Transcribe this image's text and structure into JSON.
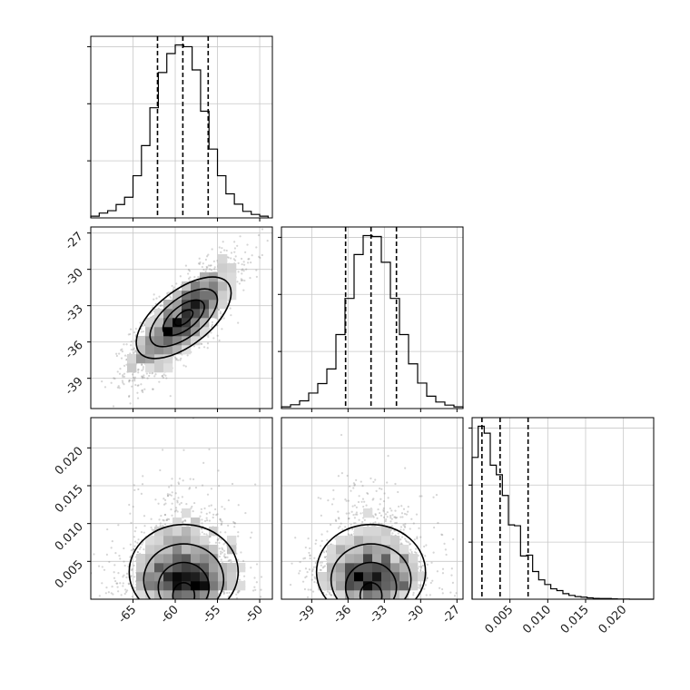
{
  "chart_data": [
    {
      "type": "histogram",
      "panel": "hist-param1",
      "x_range": [
        -70,
        -48.5
      ],
      "bin_start": -70,
      "bin_width": 1,
      "counts": [
        10,
        28,
        42,
        78,
        120,
        245,
        420,
        640,
        845,
        955,
        1005,
        995,
        860,
        620,
        400,
        245,
        140,
        80,
        38,
        20,
        10
      ],
      "quantile_lines": [
        -62.1,
        -59.1,
        -56.1
      ],
      "grid": true
    },
    {
      "type": "scatter-contour",
      "panel": "joint-param1-param2",
      "x_range": [
        -70,
        -48.5
      ],
      "y_range": [
        -41.5,
        -26.5
      ],
      "y_ticks": [
        "-27",
        "-30",
        "-33",
        "-36",
        "-39"
      ],
      "center": [
        -59,
        -34
      ],
      "spread": [
        3.1,
        2.3
      ],
      "correlation": 0.78,
      "grid": true
    },
    {
      "type": "histogram",
      "panel": "hist-param2",
      "x_range": [
        -41.5,
        -26.5
      ],
      "bin_start": -41.5,
      "bin_width": 0.75,
      "counts": [
        10,
        22,
        45,
        90,
        145,
        230,
        430,
        640,
        895,
        1005,
        1000,
        850,
        640,
        430,
        260,
        148,
        72,
        38,
        20,
        10
      ],
      "quantile_lines": [
        -36.2,
        -34.1,
        -32.0
      ],
      "grid": true
    },
    {
      "type": "scatter-contour",
      "panel": "joint-param1-param3",
      "x_range": [
        -70,
        -48.5
      ],
      "y_range": [
        0.0,
        0.024
      ],
      "y_ticks": [
        "0.020",
        "0.015",
        "0.010",
        "0.005"
      ],
      "x_ticks": [
        "-65",
        "-60",
        "-55",
        "-50"
      ],
      "grid": true
    },
    {
      "type": "scatter-contour",
      "panel": "joint-param2-param3",
      "x_range": [
        -41.5,
        -26.5
      ],
      "y_range": [
        0.0,
        0.024
      ],
      "x_ticks": [
        "-39",
        "-36",
        "-33",
        "-30",
        "-27"
      ],
      "grid": true
    },
    {
      "type": "histogram",
      "panel": "hist-param3",
      "x_range": [
        0.0,
        0.024
      ],
      "bin_start": 0.0,
      "bin_width": 0.0008,
      "counts": [
        820,
        1000,
        960,
        775,
        720,
        600,
        430,
        425,
        250,
        255,
        160,
        112,
        85,
        60,
        50,
        32,
        22,
        15,
        12,
        8,
        5,
        4,
        4,
        2,
        1,
        1,
        0,
        0,
        0,
        0
      ],
      "quantile_lines": [
        0.0013,
        0.0037,
        0.0074
      ],
      "x_ticks": [
        "0.005",
        "0.010",
        "0.015",
        "0.020"
      ],
      "grid": true
    }
  ]
}
